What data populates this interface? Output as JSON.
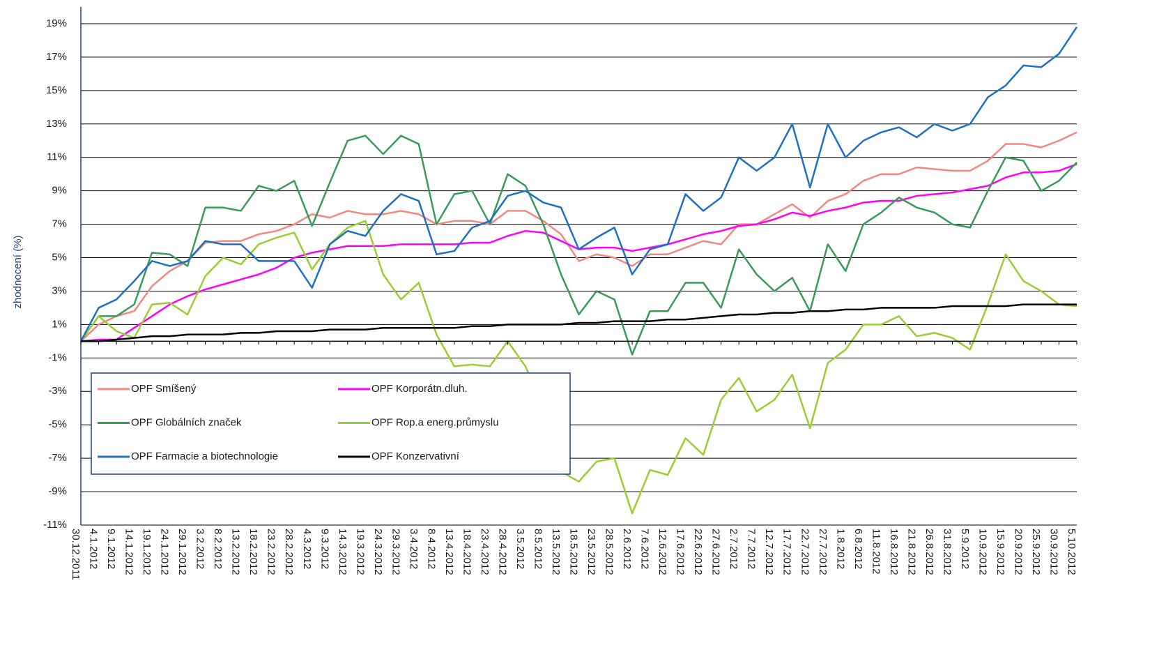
{
  "chart_data": {
    "type": "line",
    "y_label": "zhodnocení (%)",
    "categories": [
      "30.12.2011",
      "4.1.2012",
      "9.1.2012",
      "14.1.2012",
      "19.1.2012",
      "24.1.2012",
      "29.1.2012",
      "3.2.2012",
      "8.2.2012",
      "13.2.2012",
      "18.2.2012",
      "23.2.2012",
      "28.2.2012",
      "4.3.2012",
      "9.3.2012",
      "14.3.2012",
      "19.3.2012",
      "24.3.2012",
      "29.3.2012",
      "3.4.2012",
      "8.4.2012",
      "13.4.2012",
      "18.4.2012",
      "23.4.2012",
      "28.4.2012",
      "3.5.2012",
      "8.5.2012",
      "13.5.2012",
      "18.5.2012",
      "23.5.2012",
      "28.5.2012",
      "2.6.2012",
      "7.6.2012",
      "12.6.2012",
      "17.6.2012",
      "22.6.2012",
      "27.6.2012",
      "2.7.2012",
      "7.7.2012",
      "12.7.2012",
      "17.7.2012",
      "22.7.2012",
      "27.7.2012",
      "1.8.2012",
      "6.8.2012",
      "11.8.2012",
      "16.8.2012",
      "21.8.2012",
      "26.8.2012",
      "31.8.2012",
      "5.9.2012",
      "10.9.2012",
      "15.9.2012",
      "20.9.2012",
      "25.9.2012",
      "30.9.2012",
      "5.10.2012"
    ],
    "series": [
      {
        "name": "OPF Smíšený",
        "color": "#f4877f",
        "values": [
          0,
          1.0,
          1.5,
          1.8,
          3.3,
          4.2,
          4.8,
          5.9,
          6.0,
          6.0,
          6.4,
          6.6,
          7.0,
          7.6,
          7.4,
          7.8,
          7.6,
          7.6,
          7.8,
          7.6,
          7.0,
          7.2,
          7.2,
          7.0,
          7.8,
          7.8,
          7.2,
          6.4,
          4.8,
          5.2,
          5.0,
          4.5,
          5.2,
          5.2,
          5.6,
          6.0,
          5.8,
          7.0,
          7.0,
          7.6,
          8.2,
          7.4,
          8.4,
          8.8,
          9.6,
          10.0,
          10.0,
          10.4,
          10.3,
          10.2,
          10.2,
          10.8,
          11.8,
          11.8,
          11.6,
          12.0,
          12.5
        ]
      },
      {
        "name": "OPF Korporátn.dluh.",
        "color": "#ff00ff",
        "values": [
          0,
          0.1,
          0.1,
          0.8,
          1.5,
          2.2,
          2.7,
          3.1,
          3.4,
          3.7,
          4.0,
          4.4,
          5.0,
          5.3,
          5.5,
          5.7,
          5.7,
          5.7,
          5.8,
          5.8,
          5.8,
          5.8,
          5.9,
          5.9,
          6.3,
          6.6,
          6.5,
          6.0,
          5.5,
          5.6,
          5.6,
          5.4,
          5.6,
          5.8,
          6.1,
          6.4,
          6.6,
          6.9,
          7.0,
          7.3,
          7.7,
          7.5,
          7.8,
          8.0,
          8.3,
          8.4,
          8.4,
          8.7,
          8.8,
          8.9,
          9.1,
          9.3,
          9.8,
          10.1,
          10.1,
          10.2,
          10.6
        ]
      },
      {
        "name": "OPF Globálních značek",
        "color": "#3a9a5a",
        "values": [
          0,
          1.5,
          1.5,
          2.2,
          5.3,
          5.2,
          4.5,
          8.0,
          8.0,
          7.8,
          9.3,
          9.0,
          9.6,
          6.9,
          9.5,
          12.0,
          12.3,
          11.2,
          12.3,
          11.8,
          7.0,
          8.8,
          9.0,
          7.0,
          10.0,
          9.3,
          7.0,
          4.0,
          1.6,
          3.0,
          2.5,
          -0.8,
          1.8,
          1.8,
          3.5,
          3.5,
          2.0,
          5.5,
          4.0,
          3.0,
          3.8,
          1.8,
          5.8,
          4.2,
          7.0,
          7.7,
          8.6,
          8.0,
          7.7,
          7.0,
          6.8,
          9.0,
          11.0,
          10.8,
          9.0,
          9.6,
          10.7
        ]
      },
      {
        "name": "OPF Rop.a energ.průmyslu",
        "color": "#9acd32",
        "values": [
          0,
          1.5,
          0.6,
          0.2,
          2.2,
          2.3,
          1.6,
          3.9,
          5.0,
          4.6,
          5.8,
          6.2,
          6.5,
          4.3,
          5.8,
          6.8,
          7.2,
          4.0,
          2.5,
          3.5,
          0.4,
          -1.5,
          -1.4,
          -1.5,
          0.0,
          -1.5,
          -4.0,
          -7.8,
          -8.4,
          -7.2,
          -7.0,
          -10.3,
          -7.7,
          -8.0,
          -5.8,
          -6.8,
          -3.5,
          -2.2,
          -4.2,
          -3.5,
          -2.0,
          -5.2,
          -1.3,
          -0.5,
          1.0,
          1.0,
          1.5,
          0.3,
          0.5,
          0.2,
          -0.5,
          2.2,
          5.2,
          3.6,
          3.0,
          2.2,
          2.1
        ]
      },
      {
        "name": "OPF Farmacie a biotechnologie",
        "color": "#1f6fc5",
        "values": [
          0,
          2.0,
          2.5,
          3.6,
          4.8,
          4.5,
          4.8,
          6.0,
          5.8,
          5.8,
          4.8,
          4.8,
          4.8,
          3.2,
          5.8,
          6.6,
          6.3,
          7.8,
          8.8,
          8.4,
          5.2,
          5.4,
          6.8,
          7.2,
          8.7,
          9.0,
          8.3,
          8.0,
          5.5,
          6.2,
          6.8,
          4.0,
          5.5,
          5.8,
          8.8,
          7.8,
          8.6,
          11.0,
          10.2,
          11.0,
          13.0,
          9.2,
          13.0,
          11.0,
          12.0,
          12.5,
          12.8,
          12.2,
          13.0,
          12.6,
          13.0,
          14.6,
          15.3,
          16.5,
          16.4,
          17.2,
          18.8
        ]
      },
      {
        "name": "OPF Konzervativní",
        "color": "#000000",
        "values": [
          0,
          0,
          0.1,
          0.2,
          0.3,
          0.3,
          0.4,
          0.4,
          0.4,
          0.5,
          0.5,
          0.6,
          0.6,
          0.6,
          0.7,
          0.7,
          0.7,
          0.8,
          0.8,
          0.8,
          0.8,
          0.8,
          0.9,
          0.9,
          1.0,
          1.0,
          1.0,
          1.0,
          1.1,
          1.1,
          1.2,
          1.2,
          1.2,
          1.3,
          1.3,
          1.4,
          1.5,
          1.6,
          1.6,
          1.7,
          1.7,
          1.8,
          1.8,
          1.9,
          1.9,
          2.0,
          2.0,
          2.0,
          2.0,
          2.1,
          2.1,
          2.1,
          2.1,
          2.2,
          2.2,
          2.2,
          2.2
        ]
      }
    ],
    "ylim": [
      -11,
      19
    ],
    "yticks": [
      {
        "value": 19,
        "label": "19%"
      },
      {
        "value": 17,
        "label": "17%"
      },
      {
        "value": 15,
        "label": "15%"
      },
      {
        "value": 13,
        "label": "13%"
      },
      {
        "value": 11,
        "label": "11%"
      },
      {
        "value": 9,
        "label": "9%"
      },
      {
        "value": 7,
        "label": "7%"
      },
      {
        "value": 5,
        "label": "5%"
      },
      {
        "value": 3,
        "label": "3%"
      },
      {
        "value": 1,
        "label": "1%"
      },
      {
        "value": -1,
        "label": "-1%"
      },
      {
        "value": -3,
        "label": "-3%"
      },
      {
        "value": -5,
        "label": "-5%"
      },
      {
        "value": -7,
        "label": "-7%"
      },
      {
        "value": -9,
        "label": "-9%"
      },
      {
        "value": -11,
        "label": "-11%"
      }
    ],
    "grid": true
  }
}
